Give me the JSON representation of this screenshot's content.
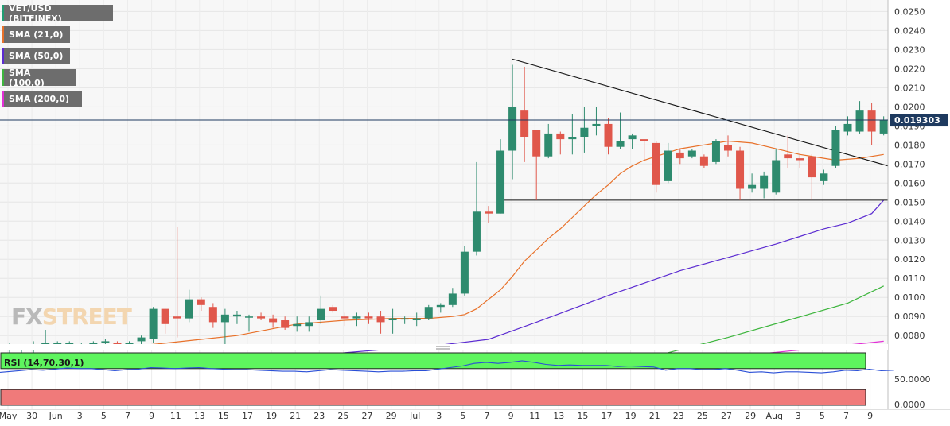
{
  "legend": [
    {
      "label": "VET/USD (BITFINEX)",
      "color": "#1f9e72"
    },
    {
      "label": "SMA (21,0)",
      "color": "#e8712a"
    },
    {
      "label": "SMA (50,0)",
      "color": "#5b2bd1"
    },
    {
      "label": "SMA (100,0)",
      "color": "#3db53d"
    },
    {
      "label": "SMA (200,0)",
      "color": "#e22fd6"
    }
  ],
  "watermark": {
    "part1": "FX",
    "part2": "STREET"
  },
  "price_label": "0.019303",
  "rsi_label": "RSI (14,70,30,1)",
  "rsi_tick": "50.0000",
  "rsi_zero": "0.0000",
  "colors": {
    "up": "#2e8b6e",
    "down": "#e0574b",
    "sma21": "#e8712a",
    "sma50": "#5b2bd1",
    "sma100": "#3db53d",
    "sma200": "#e22fd6",
    "rsi": "#2a4fd6",
    "overbought": "#5ef55e",
    "oversold": "#f07a7a"
  },
  "chart_data": {
    "type": "candlestick",
    "title": "VET/USD (BITFINEX)",
    "y_ticks": [
      "0.0080",
      "0.0090",
      "0.0100",
      "0.0110",
      "0.0120",
      "0.0130",
      "0.0140",
      "0.0150",
      "0.0160",
      "0.0170",
      "0.0180",
      "0.0190",
      "0.0200",
      "0.0210",
      "0.0220",
      "0.0230",
      "0.0240",
      "0.0250"
    ],
    "ylim": [
      0.00755,
      0.0256
    ],
    "x_ticks": [
      "May",
      "30",
      "Jun",
      "3",
      "5",
      "7",
      "9",
      "11",
      "13",
      "15",
      "17",
      "19",
      "21",
      "23",
      "25",
      "27",
      "29",
      "Jul",
      "3",
      "5",
      "7",
      "9",
      "11",
      "13",
      "15",
      "17",
      "19",
      "21",
      "23",
      "25",
      "27",
      "29",
      "Aug",
      "3",
      "5",
      "7",
      "9"
    ],
    "current_price": 0.019303,
    "candles": [
      {
        "o": 0.0073,
        "h": 0.0076,
        "l": 0.007,
        "c": 0.0075
      },
      {
        "o": 0.0073,
        "h": 0.0075,
        "l": 0.0071,
        "c": 0.0074
      },
      {
        "o": 0.0073,
        "h": 0.0077,
        "l": 0.0071,
        "c": 0.0075
      },
      {
        "o": 0.0075,
        "h": 0.0083,
        "l": 0.0073,
        "c": 0.0076
      },
      {
        "o": 0.0075,
        "h": 0.0077,
        "l": 0.0073,
        "c": 0.0076
      },
      {
        "o": 0.0075,
        "h": 0.0077,
        "l": 0.0074,
        "c": 0.0076
      },
      {
        "o": 0.0074,
        "h": 0.0076,
        "l": 0.0073,
        "c": 0.0075
      },
      {
        "o": 0.0075,
        "h": 0.0077,
        "l": 0.0074,
        "c": 0.0076
      },
      {
        "o": 0.0076,
        "h": 0.0078,
        "l": 0.0075,
        "c": 0.0077
      },
      {
        "o": 0.0076,
        "h": 0.0077,
        "l": 0.0074,
        "c": 0.0075
      },
      {
        "o": 0.0075,
        "h": 0.0077,
        "l": 0.0074,
        "c": 0.0076
      },
      {
        "o": 0.0077,
        "h": 0.008,
        "l": 0.0075,
        "c": 0.0079
      },
      {
        "o": 0.0078,
        "h": 0.0095,
        "l": 0.0076,
        "c": 0.0094
      },
      {
        "o": 0.0094,
        "h": 0.0094,
        "l": 0.0081,
        "c": 0.0086
      },
      {
        "o": 0.009,
        "h": 0.0137,
        "l": 0.0079,
        "c": 0.0089
      },
      {
        "o": 0.0089,
        "h": 0.0104,
        "l": 0.0087,
        "c": 0.0099
      },
      {
        "o": 0.0099,
        "h": 0.01,
        "l": 0.0093,
        "c": 0.0096
      },
      {
        "o": 0.0095,
        "h": 0.0097,
        "l": 0.0084,
        "c": 0.0087
      },
      {
        "o": 0.0087,
        "h": 0.0094,
        "l": 0.0074,
        "c": 0.0091
      },
      {
        "o": 0.009,
        "h": 0.0093,
        "l": 0.0086,
        "c": 0.0091
      },
      {
        "o": 0.009,
        "h": 0.0091,
        "l": 0.0082,
        "c": 0.009
      },
      {
        "o": 0.009,
        "h": 0.0092,
        "l": 0.0088,
        "c": 0.0089
      },
      {
        "o": 0.0089,
        "h": 0.0091,
        "l": 0.0084,
        "c": 0.0087
      },
      {
        "o": 0.0088,
        "h": 0.009,
        "l": 0.0083,
        "c": 0.0084
      },
      {
        "o": 0.0085,
        "h": 0.009,
        "l": 0.0082,
        "c": 0.0086
      },
      {
        "o": 0.0085,
        "h": 0.009,
        "l": 0.0082,
        "c": 0.0087
      },
      {
        "o": 0.0088,
        "h": 0.0101,
        "l": 0.0086,
        "c": 0.0094
      },
      {
        "o": 0.0095,
        "h": 0.0096,
        "l": 0.0092,
        "c": 0.0093
      },
      {
        "o": 0.009,
        "h": 0.0092,
        "l": 0.0085,
        "c": 0.0089
      },
      {
        "o": 0.0089,
        "h": 0.0092,
        "l": 0.0085,
        "c": 0.009
      },
      {
        "o": 0.009,
        "h": 0.0092,
        "l": 0.0086,
        "c": 0.0089
      },
      {
        "o": 0.009,
        "h": 0.0093,
        "l": 0.0081,
        "c": 0.0087
      },
      {
        "o": 0.0088,
        "h": 0.0094,
        "l": 0.0081,
        "c": 0.0089
      },
      {
        "o": 0.0089,
        "h": 0.009,
        "l": 0.0086,
        "c": 0.0089
      },
      {
        "o": 0.0088,
        "h": 0.0092,
        "l": 0.0085,
        "c": 0.0089
      },
      {
        "o": 0.0089,
        "h": 0.0096,
        "l": 0.0088,
        "c": 0.0095
      },
      {
        "o": 0.0095,
        "h": 0.0097,
        "l": 0.0092,
        "c": 0.0096
      },
      {
        "o": 0.0096,
        "h": 0.0105,
        "l": 0.0095,
        "c": 0.0102
      },
      {
        "o": 0.0102,
        "h": 0.0127,
        "l": 0.0101,
        "c": 0.0124
      },
      {
        "o": 0.0124,
        "h": 0.0171,
        "l": 0.0122,
        "c": 0.0145
      },
      {
        "o": 0.0145,
        "h": 0.0148,
        "l": 0.0139,
        "c": 0.0144
      },
      {
        "o": 0.0144,
        "h": 0.0183,
        "l": 0.0144,
        "c": 0.0177
      },
      {
        "o": 0.0177,
        "h": 0.0222,
        "l": 0.0162,
        "c": 0.02
      },
      {
        "o": 0.0198,
        "h": 0.0221,
        "l": 0.0171,
        "c": 0.0184
      },
      {
        "o": 0.0188,
        "h": 0.0188,
        "l": 0.0151,
        "c": 0.0174
      },
      {
        "o": 0.0174,
        "h": 0.0191,
        "l": 0.0173,
        "c": 0.0186
      },
      {
        "o": 0.0186,
        "h": 0.0187,
        "l": 0.0175,
        "c": 0.0183
      },
      {
        "o": 0.0183,
        "h": 0.0196,
        "l": 0.0175,
        "c": 0.0184
      },
      {
        "o": 0.0184,
        "h": 0.02,
        "l": 0.0176,
        "c": 0.0189
      },
      {
        "o": 0.019,
        "h": 0.02,
        "l": 0.0185,
        "c": 0.0191
      },
      {
        "o": 0.0191,
        "h": 0.0194,
        "l": 0.0175,
        "c": 0.0179
      },
      {
        "o": 0.0179,
        "h": 0.0197,
        "l": 0.0178,
        "c": 0.0182
      },
      {
        "o": 0.0183,
        "h": 0.0186,
        "l": 0.0178,
        "c": 0.0185
      },
      {
        "o": 0.0183,
        "h": 0.0183,
        "l": 0.0172,
        "c": 0.0182
      },
      {
        "o": 0.0181,
        "h": 0.0182,
        "l": 0.0155,
        "c": 0.0159
      },
      {
        "o": 0.0161,
        "h": 0.0181,
        "l": 0.016,
        "c": 0.0177
      },
      {
        "o": 0.0176,
        "h": 0.0178,
        "l": 0.017,
        "c": 0.0173
      },
      {
        "o": 0.0174,
        "h": 0.0178,
        "l": 0.0173,
        "c": 0.0177
      },
      {
        "o": 0.0174,
        "h": 0.0175,
        "l": 0.0168,
        "c": 0.0169
      },
      {
        "o": 0.0171,
        "h": 0.0183,
        "l": 0.017,
        "c": 0.0182
      },
      {
        "o": 0.018,
        "h": 0.0185,
        "l": 0.0174,
        "c": 0.0177
      },
      {
        "o": 0.0177,
        "h": 0.0179,
        "l": 0.0151,
        "c": 0.0157
      },
      {
        "o": 0.0157,
        "h": 0.0165,
        "l": 0.0155,
        "c": 0.0159
      },
      {
        "o": 0.0157,
        "h": 0.0166,
        "l": 0.0152,
        "c": 0.0164
      },
      {
        "o": 0.0155,
        "h": 0.0178,
        "l": 0.0154,
        "c": 0.0172
      },
      {
        "o": 0.0175,
        "h": 0.0185,
        "l": 0.0168,
        "c": 0.0173
      },
      {
        "o": 0.0173,
        "h": 0.0175,
        "l": 0.0168,
        "c": 0.0172
      },
      {
        "o": 0.0174,
        "h": 0.0175,
        "l": 0.0151,
        "c": 0.0163
      },
      {
        "o": 0.0161,
        "h": 0.0167,
        "l": 0.0159,
        "c": 0.0165
      },
      {
        "o": 0.0169,
        "h": 0.019,
        "l": 0.0168,
        "c": 0.0188
      },
      {
        "o": 0.0187,
        "h": 0.0195,
        "l": 0.0185,
        "c": 0.0191
      },
      {
        "o": 0.0187,
        "h": 0.0203,
        "l": 0.0186,
        "c": 0.0198
      },
      {
        "o": 0.0198,
        "h": 0.0202,
        "l": 0.018,
        "c": 0.0187
      },
      {
        "o": 0.0186,
        "h": 0.0195,
        "l": 0.0185,
        "c": 0.0193
      }
    ],
    "sma21": [
      [
        0,
        0.0074
      ],
      [
        10,
        0.0074
      ],
      [
        19,
        0.008
      ],
      [
        24,
        0.0086
      ],
      [
        28,
        0.0088
      ],
      [
        32,
        0.0089
      ],
      [
        35,
        0.0089
      ],
      [
        37,
        0.009
      ],
      [
        38,
        0.0091
      ],
      [
        39,
        0.0094
      ],
      [
        40,
        0.0099
      ],
      [
        41,
        0.0104
      ],
      [
        42,
        0.0111
      ],
      [
        43,
        0.0119
      ],
      [
        44,
        0.0125
      ],
      [
        45,
        0.0131
      ],
      [
        46,
        0.0136
      ],
      [
        47,
        0.0142
      ],
      [
        48,
        0.0148
      ],
      [
        49,
        0.0154
      ],
      [
        50,
        0.0159
      ],
      [
        51,
        0.0165
      ],
      [
        52,
        0.0169
      ],
      [
        53,
        0.0172
      ],
      [
        54,
        0.0174
      ],
      [
        56,
        0.0178
      ],
      [
        58,
        0.018
      ],
      [
        60,
        0.0182
      ],
      [
        62,
        0.0181
      ],
      [
        64,
        0.0178
      ],
      [
        66,
        0.0175
      ],
      [
        68,
        0.0173
      ],
      [
        69,
        0.0172
      ],
      [
        71,
        0.0173
      ],
      [
        73,
        0.0175
      ]
    ],
    "sma50": [
      [
        18,
        0.0065
      ],
      [
        28,
        0.0071
      ],
      [
        36,
        0.0075
      ],
      [
        40,
        0.0078
      ],
      [
        44,
        0.0087
      ],
      [
        50,
        0.0101
      ],
      [
        56,
        0.0114
      ],
      [
        60,
        0.0121
      ],
      [
        64,
        0.0128
      ],
      [
        66,
        0.0132
      ],
      [
        68,
        0.0136
      ],
      [
        70,
        0.0139
      ],
      [
        72,
        0.0144
      ],
      [
        73,
        0.0151
      ]
    ],
    "sma100": [
      [
        55,
        0.0071
      ],
      [
        60,
        0.0079
      ],
      [
        65,
        0.0088
      ],
      [
        70,
        0.0097
      ],
      [
        73,
        0.0106
      ]
    ],
    "sma200": [
      [
        62,
        0.007
      ],
      [
        67,
        0.0073
      ],
      [
        73,
        0.0077
      ]
    ],
    "trendlines": [
      {
        "label": "descending",
        "from": [
          42,
          0.0225
        ],
        "to": [
          75,
          0.0169
        ]
      },
      {
        "label": "support",
        "from": [
          41,
          0.0151
        ],
        "to": [
          75,
          0.0151
        ]
      }
    ],
    "rsi": {
      "ylim": [
        0,
        100
      ],
      "ticks": [
        50,
        0
      ],
      "overbought": 70,
      "oversold": 30,
      "values": [
        63,
        66,
        68,
        67,
        69,
        71,
        70,
        70,
        68,
        66,
        68,
        69,
        72,
        71,
        70,
        71,
        72,
        70,
        69,
        68,
        68,
        67,
        66,
        65,
        65,
        64,
        66,
        68,
        67,
        66,
        65,
        64,
        65,
        65,
        66,
        66,
        69,
        72,
        75,
        80,
        82,
        80,
        82,
        85,
        82,
        78,
        76,
        77,
        76,
        76,
        76,
        74,
        75,
        74,
        73,
        67,
        70,
        70,
        68,
        68,
        70,
        67,
        63,
        64,
        62,
        64,
        64,
        63,
        62,
        64,
        67,
        66,
        69,
        66,
        67
      ]
    }
  }
}
